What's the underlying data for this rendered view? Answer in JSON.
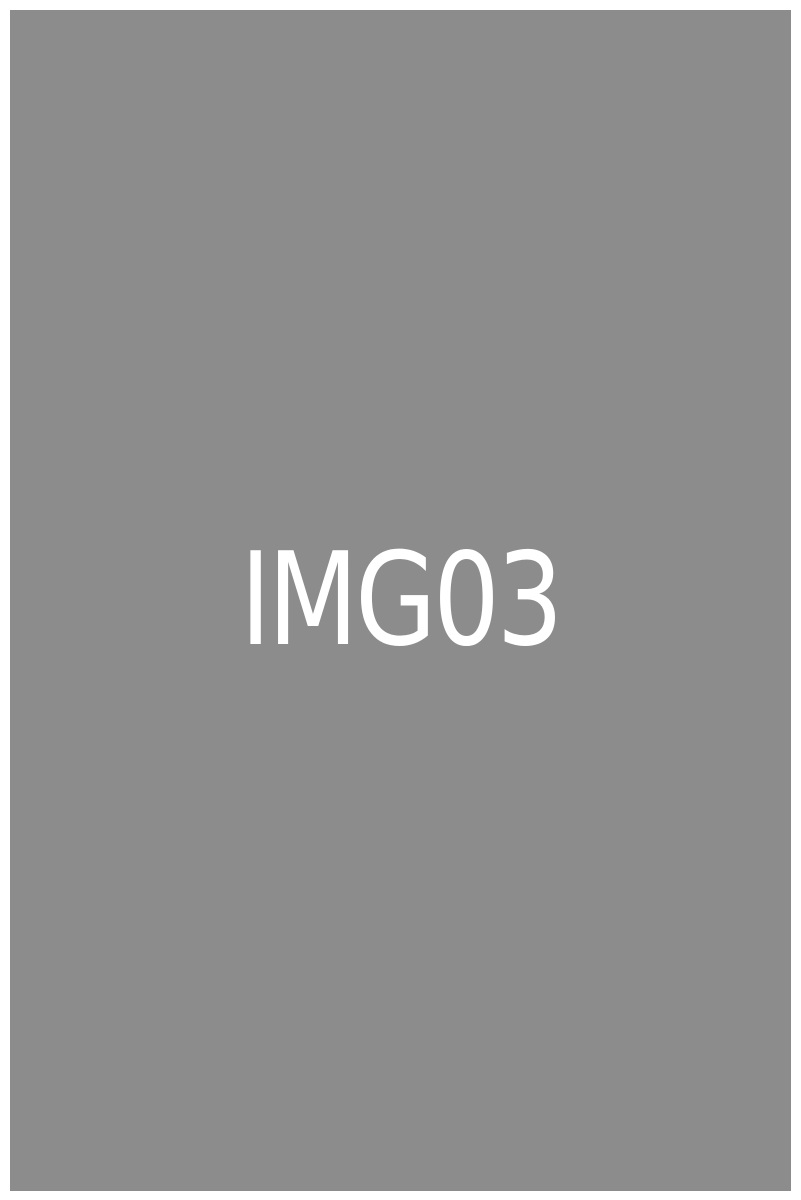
{
  "image": {
    "label": "IMG03",
    "background_color": "#8c8c8c",
    "border_color": "#ffffff",
    "text_color": "#ffffff"
  }
}
